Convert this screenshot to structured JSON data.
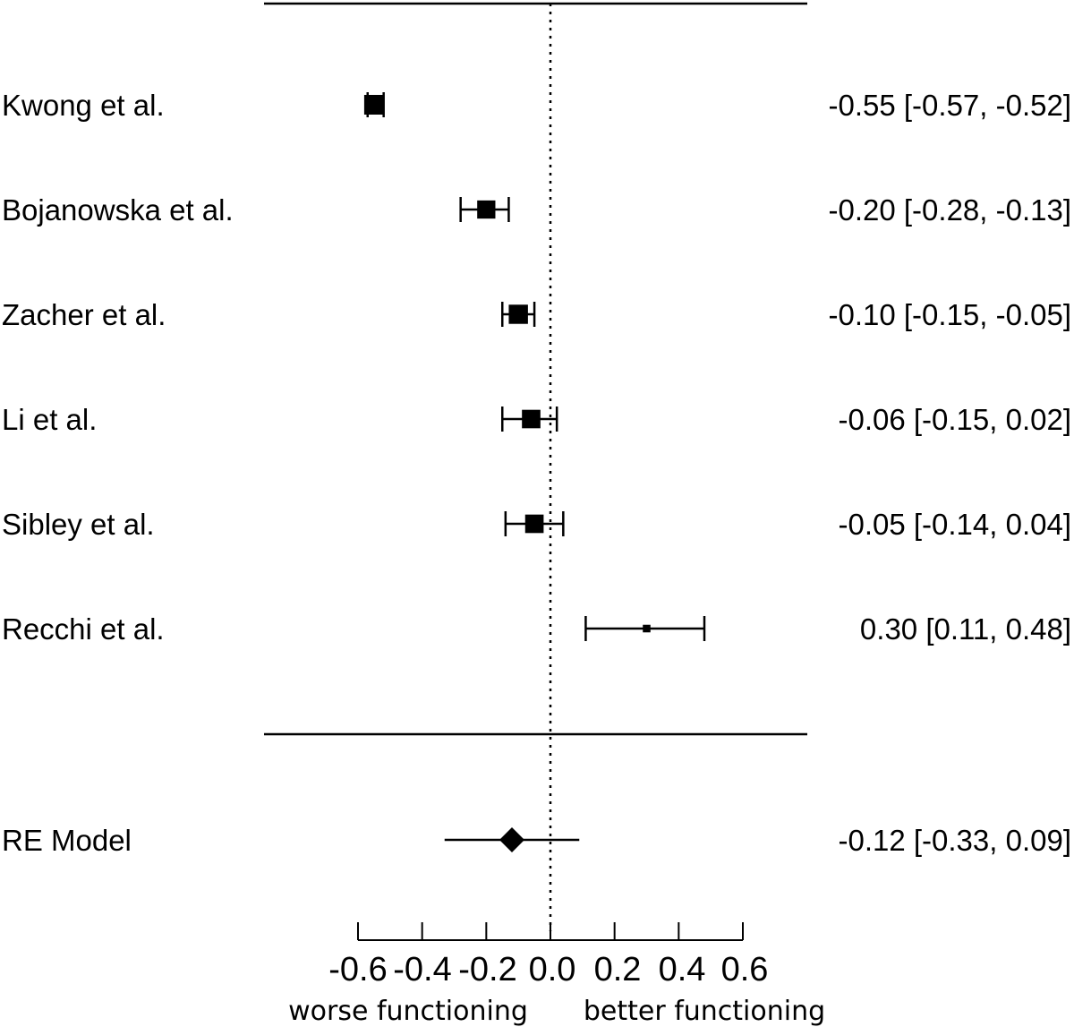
{
  "chart_data": {
    "type": "forest",
    "studies": [
      {
        "label": "Kwong et al.",
        "estimate": -0.55,
        "ci_low": -0.57,
        "ci_high": -0.52,
        "ci_text": "-0.55 [-0.57, -0.52]",
        "weight": 1.0
      },
      {
        "label": "Bojanowska et al.",
        "estimate": -0.2,
        "ci_low": -0.28,
        "ci_high": -0.13,
        "ci_text": "-0.20 [-0.28, -0.13]",
        "weight": 0.85
      },
      {
        "label": "Zacher et al.",
        "estimate": -0.1,
        "ci_low": -0.15,
        "ci_high": -0.05,
        "ci_text": "-0.10 [-0.15, -0.05]",
        "weight": 0.95
      },
      {
        "label": "Li et al.",
        "estimate": -0.06,
        "ci_low": -0.15,
        "ci_high": 0.02,
        "ci_text": "-0.06 [-0.15, 0.02]",
        "weight": 0.88
      },
      {
        "label": "Sibley et al.",
        "estimate": -0.05,
        "ci_low": -0.14,
        "ci_high": 0.04,
        "ci_text": "-0.05 [-0.14, 0.04]",
        "weight": 0.88
      },
      {
        "label": "Recchi et al.",
        "estimate": 0.3,
        "ci_low": 0.11,
        "ci_high": 0.48,
        "ci_text": "0.30 [0.11, 0.48]",
        "weight": 0.15
      }
    ],
    "summary": {
      "label": "RE Model",
      "estimate": -0.12,
      "ci_low": -0.33,
      "ci_high": 0.09,
      "ci_text": "-0.12 [-0.33, 0.09]"
    },
    "x_ticks": [
      -0.6,
      -0.4,
      -0.2,
      0.0,
      0.2,
      0.4,
      0.6
    ],
    "x_tick_labels": [
      "-0.6",
      "-0.4",
      "-0.2",
      "0.0",
      "0.2",
      "0.4",
      "0.6"
    ],
    "xlim": [
      -0.6,
      0.6
    ],
    "reference_line": 0.0,
    "left_direction_label": "worse functioning",
    "right_direction_label": "better functioning",
    "grid": false
  }
}
